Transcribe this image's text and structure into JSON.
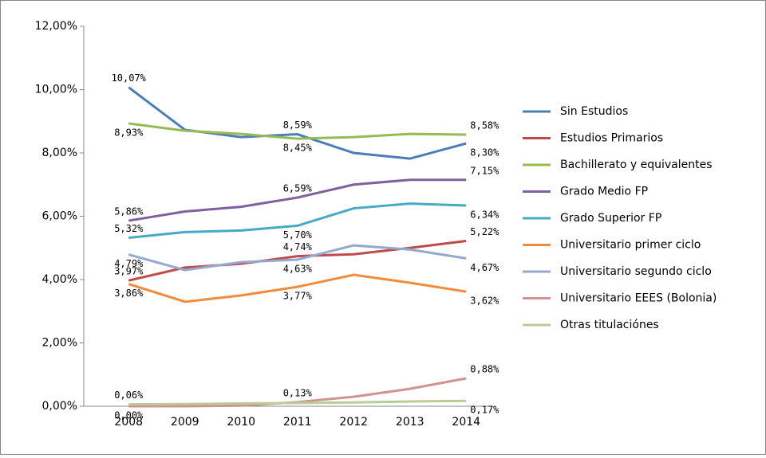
{
  "chart_data": {
    "type": "line",
    "categories": [
      "2008",
      "2009",
      "2010",
      "2011",
      "2012",
      "2013",
      "2014"
    ],
    "ylim": [
      0,
      12
    ],
    "yticks": [
      {
        "value": 0,
        "label": "0,00%"
      },
      {
        "value": 2,
        "label": "2,00%"
      },
      {
        "value": 4,
        "label": "4,00%"
      },
      {
        "value": 6,
        "label": "6,00%"
      },
      {
        "value": 8,
        "label": "8,00%"
      },
      {
        "value": 10,
        "label": "10,00%"
      },
      {
        "value": 12,
        "label": "12,00%"
      }
    ],
    "grid": false,
    "legend": "right",
    "series": [
      {
        "name": "Sin Estudios",
        "color": "#4a7ebb",
        "values": [
          10.07,
          8.73,
          8.5,
          8.59,
          8.0,
          7.82,
          8.3
        ],
        "value_labels": [
          "10,07%",
          null,
          null,
          "8,59%",
          null,
          null,
          "8,30%"
        ]
      },
      {
        "name": "Estudios Primarios",
        "color": "#be4b48",
        "values": [
          3.97,
          4.38,
          4.5,
          4.74,
          4.8,
          5.0,
          5.22
        ],
        "value_labels": [
          "3,97%",
          null,
          null,
          "4,74%",
          null,
          null,
          "5,22%"
        ]
      },
      {
        "name": "Bachillerato y equivalentes",
        "color": "#98b954",
        "values": [
          8.93,
          8.7,
          8.6,
          8.45,
          8.5,
          8.6,
          8.58
        ],
        "value_labels": [
          "8,93%",
          null,
          null,
          "8,45%",
          null,
          null,
          "8,58%"
        ]
      },
      {
        "name": "Grado Medio FP",
        "color": "#7d60a0",
        "values": [
          5.86,
          6.15,
          6.3,
          6.59,
          7.0,
          7.15,
          7.15
        ],
        "value_labels": [
          "5,86%",
          null,
          null,
          "6,59%",
          null,
          null,
          "7,15%"
        ]
      },
      {
        "name": "Grado Superior FP",
        "color": "#46aac5",
        "values": [
          5.32,
          5.5,
          5.55,
          5.7,
          6.25,
          6.4,
          6.34
        ],
        "value_labels": [
          "5,32%",
          null,
          null,
          "5,70%",
          null,
          null,
          "6,34%"
        ]
      },
      {
        "name": "Universitario primer ciclo",
        "color": "#f38c3a",
        "values": [
          3.86,
          3.3,
          3.5,
          3.77,
          4.15,
          3.9,
          3.62
        ],
        "value_labels": [
          "3,86%",
          null,
          null,
          "3,77%",
          null,
          null,
          "3,62%"
        ]
      },
      {
        "name": "Universitario segundo ciclo",
        "color": "#93a9cf",
        "values": [
          4.79,
          4.3,
          4.55,
          4.63,
          5.08,
          4.95,
          4.67
        ],
        "value_labels": [
          "4,79%",
          null,
          null,
          "4,63%",
          null,
          null,
          "4,67%"
        ]
      },
      {
        "name": "Universitario EEES (Bolonia)",
        "color": "#d19392",
        "values": [
          0.0,
          0.0,
          0.02,
          0.13,
          0.3,
          0.55,
          0.88
        ],
        "value_labels": [
          "0,00%",
          null,
          null,
          "0,13%",
          null,
          null,
          "0,88%"
        ]
      },
      {
        "name": "Otras titulaciónes",
        "color": "#b9cd96",
        "values": [
          0.06,
          0.07,
          0.09,
          0.1,
          0.12,
          0.15,
          0.17
        ],
        "value_labels": [
          "0,06%",
          null,
          null,
          null,
          null,
          null,
          "0,17%"
        ]
      }
    ]
  }
}
